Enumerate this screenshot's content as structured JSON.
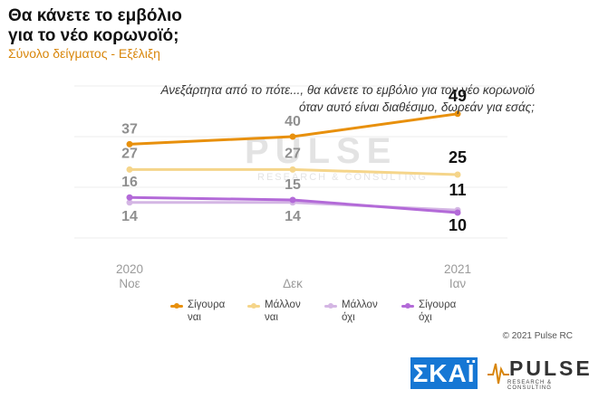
{
  "header": {
    "title_line1": "Θα κάνετε το εμβόλιο",
    "title_line2": "για το νέο κορωνοϊό;",
    "subtitle": "Σύνολο δείγματος - Εξέλιξη"
  },
  "question": {
    "line1": "Ανεξάρτητα από το πότε..., θα κάνετε το εμβόλιο για τον νέο κορωνοϊό",
    "line2": "όταν αυτό είναι διαθέσιμο, δωρεάν για εσάς;"
  },
  "chart_data": {
    "type": "line",
    "categories": [
      [
        "2020",
        "Νοε"
      ],
      [
        "Δεκ"
      ],
      [
        "2021",
        "Ιαν"
      ]
    ],
    "series": [
      {
        "name": "Σίγουρα ναι",
        "color": "#e8900c",
        "values": [
          37,
          40,
          49
        ]
      },
      {
        "name": "Μάλλον ναι",
        "color": "#f5d58a",
        "values": [
          27,
          27,
          25
        ]
      },
      {
        "name": "Μάλλον όχι",
        "color": "#d4b6e4",
        "values": [
          14,
          14,
          11
        ]
      },
      {
        "name": "Σίγουρα όχι",
        "color": "#b36ad8",
        "values": [
          16,
          15,
          10
        ]
      }
    ],
    "ylim": [
      0,
      60
    ],
    "grid": true,
    "legend_position": "bottom"
  },
  "legend": [
    {
      "line1": "Σίγουρα",
      "line2": "ναι",
      "color": "#e8900c"
    },
    {
      "line1": "Μάλλον",
      "line2": "ναι",
      "color": "#f5d58a"
    },
    {
      "line1": "Μάλλον",
      "line2": "όχι",
      "color": "#d4b6e4"
    },
    {
      "line1": "Σίγουρα",
      "line2": "όχι",
      "color": "#b36ad8"
    }
  ],
  "footer": {
    "copyright": "© 2021 Pulse RC",
    "skai_logo": "ΣΚΑΪ",
    "pulse_logo": "PULSE",
    "pulse_tagline": "RESEARCH & CONSULTING"
  },
  "watermark": {
    "word": "PULSE",
    "tagline": "RESEARCH & CONSULTING"
  }
}
